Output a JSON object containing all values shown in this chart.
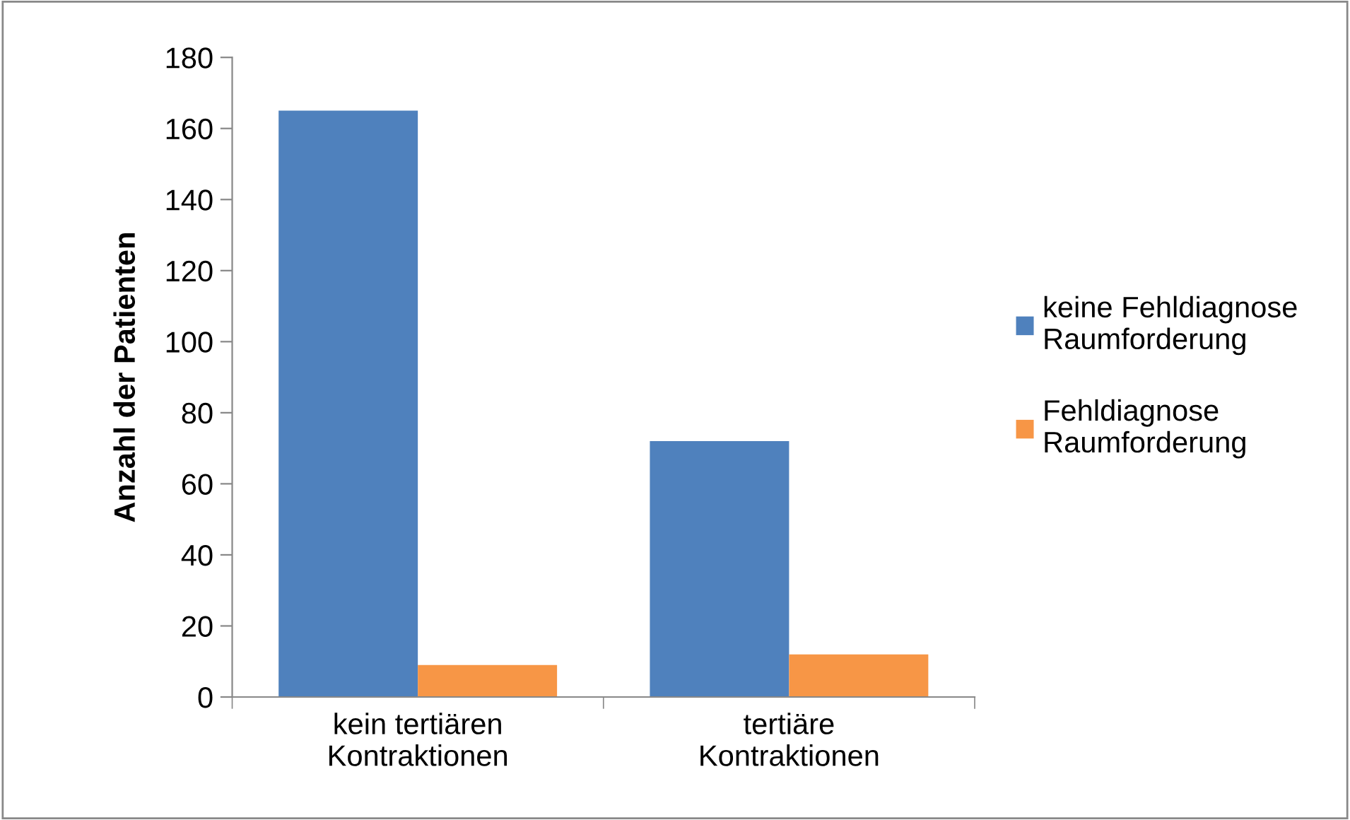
{
  "chart_data": {
    "type": "bar",
    "ylabel": "Anzahl der Patienten",
    "categories": [
      "kein tertiären\nKontraktionen",
      "tertiäre\nKontraktionen"
    ],
    "series": [
      {
        "name": "keine Fehldiagnose\nRaumforderung",
        "color": "#4f81bd",
        "values": [
          165,
          72
        ]
      },
      {
        "name": "Fehldiagnose\nRaumforderung",
        "color": "#f79646",
        "values": [
          9,
          12
        ]
      }
    ],
    "ylim": [
      0,
      180
    ],
    "yticks": [
      0,
      20,
      40,
      60,
      80,
      100,
      120,
      140,
      160,
      180
    ],
    "grid": false,
    "legend": "right"
  }
}
